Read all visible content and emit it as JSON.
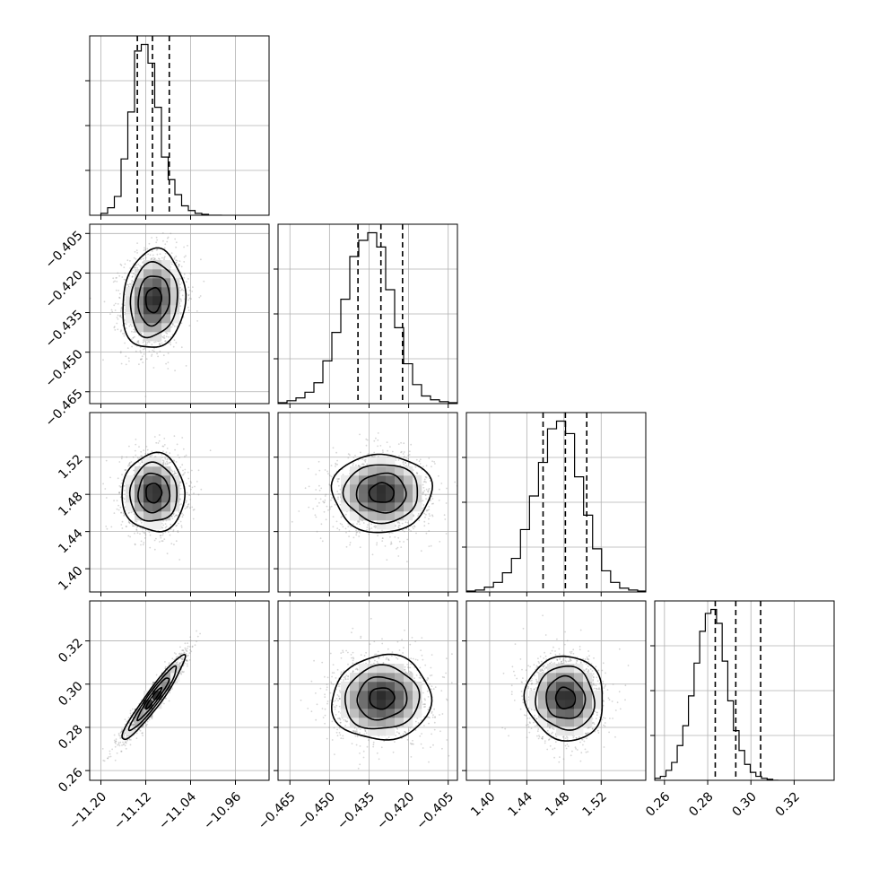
{
  "chart_data": {
    "type": "corner",
    "grid": true,
    "parameters": [
      {
        "range": [
          -11.22,
          -10.9
        ],
        "ticks": [
          -11.2,
          -11.12,
          -11.04,
          -10.96
        ],
        "tick_labels": [
          "−11.20",
          "−11.12",
          "−11.04",
          "−10.96"
        ],
        "quantiles": [
          -11.135,
          -11.108,
          -11.078
        ],
        "hist_edges_start": -11.2,
        "hist_bin_width": 0.012,
        "hist_counts": [
          2,
          8,
          20,
          60,
          110,
          175,
          182,
          162,
          115,
          62,
          38,
          22,
          10,
          5,
          2,
          1,
          0,
          0
        ]
      },
      {
        "range": [
          -0.4695,
          -0.4015
        ],
        "ticks": [
          -0.465,
          -0.45,
          -0.435,
          -0.42,
          -0.405
        ],
        "tick_labels": [
          "−0.465",
          "−0.450",
          "−0.435",
          "−0.420",
          "−0.405"
        ],
        "quantiles": [
          -0.4392,
          -0.4305,
          -0.4223
        ],
        "hist_edges_start": -0.4695,
        "hist_bin_width": 0.0034,
        "hist_counts": [
          1,
          3,
          6,
          12,
          22,
          45,
          75,
          110,
          155,
          172,
          180,
          165,
          120,
          80,
          42,
          20,
          8,
          4,
          2,
          1
        ]
      },
      {
        "range": [
          1.375,
          1.568
        ],
        "ticks": [
          1.4,
          1.44,
          1.48,
          1.52
        ],
        "tick_labels": [
          "1.40",
          "1.44",
          "1.48",
          "1.52"
        ],
        "quantiles": [
          1.4575,
          1.4815,
          1.5045
        ],
        "hist_edges_start": 1.375,
        "hist_bin_width": 0.0097,
        "hist_counts": [
          1,
          2,
          5,
          10,
          20,
          35,
          65,
          100,
          135,
          170,
          178,
          165,
          120,
          80,
          45,
          22,
          10,
          4,
          2,
          1
        ]
      },
      {
        "range": [
          0.2555,
          0.3385
        ],
        "ticks": [
          0.26,
          0.28,
          0.3,
          0.32
        ],
        "tick_labels": [
          "0.26",
          "0.28",
          "0.30",
          "0.32"
        ],
        "quantiles": [
          0.2835,
          0.293,
          0.3045
        ],
        "hist_edges_start": 0.2555,
        "hist_bin_width": 0.0026,
        "hist_counts": [
          2,
          4,
          10,
          18,
          35,
          55,
          85,
          118,
          150,
          168,
          172,
          158,
          120,
          80,
          50,
          30,
          16,
          8,
          4,
          2,
          1,
          0
        ]
      }
    ],
    "pairs": [
      {
        "row": 1,
        "col": 0,
        "mean": [
          -11.106,
          -0.4302
        ],
        "sd": [
          0.028,
          0.0094
        ],
        "corr": 0.1
      },
      {
        "row": 2,
        "col": 0,
        "mean": [
          -11.106,
          1.4815
        ],
        "sd": [
          0.028,
          0.021
        ],
        "corr": 0.0
      },
      {
        "row": 2,
        "col": 1,
        "mean": [
          -0.4302,
          1.4815
        ],
        "sd": [
          0.0094,
          0.021
        ],
        "corr": 0.0
      },
      {
        "row": 3,
        "col": 0,
        "mean": [
          -11.106,
          0.2935
        ],
        "sd": [
          0.028,
          0.0098
        ],
        "corr": 0.95
      },
      {
        "row": 3,
        "col": 1,
        "mean": [
          -0.4302,
          0.2935
        ],
        "sd": [
          0.0094,
          0.0098
        ],
        "corr": 0.05
      },
      {
        "row": 3,
        "col": 2,
        "mean": [
          1.4815,
          0.2935
        ],
        "sd": [
          0.021,
          0.0098
        ],
        "corr": -0.05
      }
    ],
    "contour_levels_sigma": [
      0.5,
      1.0,
      1.5,
      2.0
    ]
  }
}
